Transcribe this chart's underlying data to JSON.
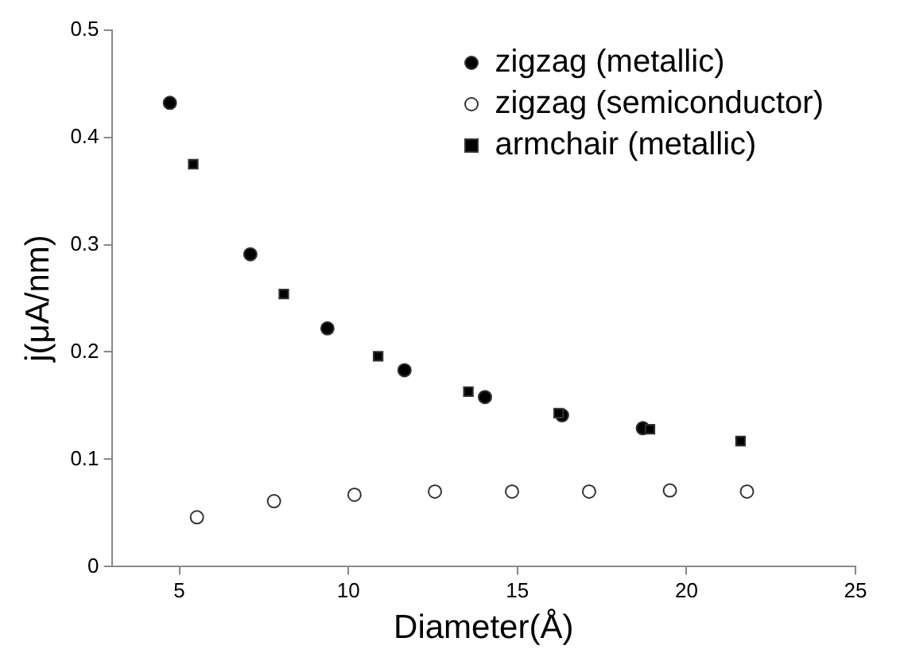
{
  "chart_data": {
    "type": "scatter",
    "xlabel": "Diameter(Å)",
    "ylabel": "j(μA/nm)",
    "xlim": [
      3,
      25
    ],
    "xticks": [
      5,
      10,
      15,
      20,
      25
    ],
    "ylim": [
      0,
      0.5
    ],
    "yticks": [
      0,
      0.1,
      0.2,
      0.3,
      0.4,
      0.5
    ],
    "grid": false,
    "legend": "top right",
    "series": [
      {
        "name": "zigzag (metallic)",
        "color": "#000000",
        "marker": "circle",
        "x": [
          4.72,
          7.1,
          9.38,
          11.66,
          14.04,
          16.32,
          18.71
        ],
        "values": [
          0.432,
          0.291,
          0.222,
          0.183,
          0.158,
          0.141,
          0.129
        ]
      },
      {
        "name": "zigzag (semiconductor)",
        "color": "#ffffff",
        "marker": "circle",
        "x": [
          5.52,
          7.8,
          10.18,
          12.56,
          14.84,
          17.12,
          19.51,
          21.79
        ],
        "values": [
          0.046,
          0.061,
          0.067,
          0.07,
          0.07,
          0.07,
          0.071,
          0.07
        ]
      },
      {
        "name": "armchair (metallic)",
        "color": "#000000",
        "marker": "square",
        "x": [
          5.41,
          8.09,
          10.88,
          13.55,
          16.22,
          18.92,
          21.6
        ],
        "values": [
          0.375,
          0.254,
          0.196,
          0.163,
          0.143,
          0.128,
          0.117
        ]
      }
    ]
  }
}
